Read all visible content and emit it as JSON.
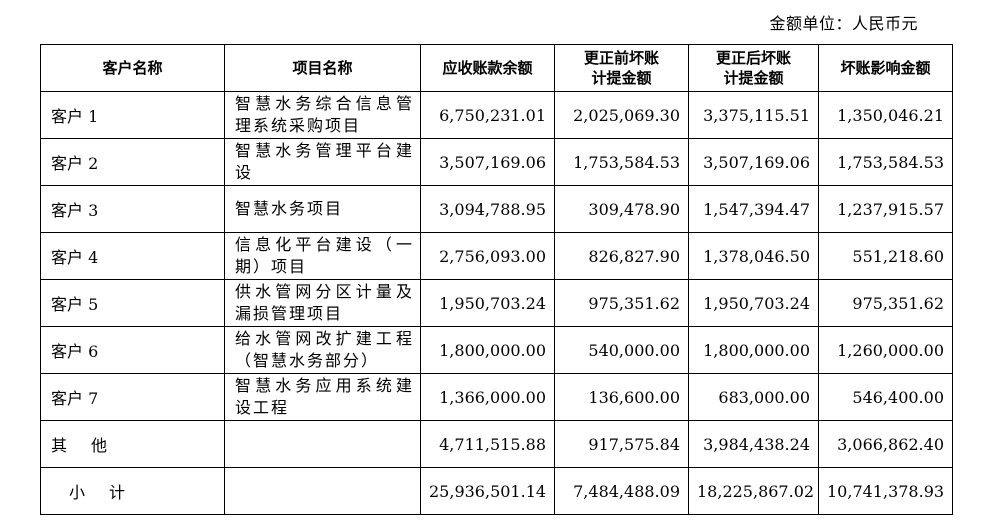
{
  "unit_label": "金额单位：人民币元",
  "headers": [
    "客户名称",
    "项目名称",
    "应收账款余额",
    "更正前坏账计提金额",
    "更正后坏账计提金额",
    "坏账影响金额"
  ],
  "rows": [
    {
      "customer": "客户 1",
      "project": "智慧水务综合信息管理系统采购项目",
      "receivable": "6,750,231.01",
      "before": "2,025,069.30",
      "after": "3,375,115.51",
      "impact": "1,350,046.21"
    },
    {
      "customer": "客户 2",
      "project": "智慧水务管理平台建设",
      "receivable": "3,507,169.06",
      "before": "1,753,584.53",
      "after": "3,507,169.06",
      "impact": "1,753,584.53"
    },
    {
      "customer": "客户 3",
      "project": "智慧水务项目",
      "receivable": "3,094,788.95",
      "before": "309,478.90",
      "after": "1,547,394.47",
      "impact": "1,237,915.57"
    },
    {
      "customer": "客户 4",
      "project": "信息化平台建设（一期）项目",
      "receivable": "2,756,093.00",
      "before": "826,827.90",
      "after": "1,378,046.50",
      "impact": "551,218.60"
    },
    {
      "customer": "客户 5",
      "project": "供水管网分区计量及漏损管理项目",
      "receivable": "1,950,703.24",
      "before": "975,351.62",
      "after": "1,950,703.24",
      "impact": "975,351.62"
    },
    {
      "customer": "客户 6",
      "project": "给水管网改扩建工程（智慧水务部分）",
      "receivable": "1,800,000.00",
      "before": "540,000.00",
      "after": "1,800,000.00",
      "impact": "1,260,000.00"
    },
    {
      "customer": "客户 7",
      "project": "智慧水务应用系统建设工程",
      "receivable": "1,366,000.00",
      "before": "136,600.00",
      "after": "683,000.00",
      "impact": "546,400.00"
    }
  ],
  "other": {
    "label": "其他",
    "receivable": "4,711,515.88",
    "before": "917,575.84",
    "after": "3,984,438.24",
    "impact": "3,066,862.40"
  },
  "total": {
    "label": "小计",
    "receivable": "25,936,501.14",
    "before": "7,484,488.09",
    "after": "18,225,867.02",
    "impact": "10,741,378.93"
  }
}
